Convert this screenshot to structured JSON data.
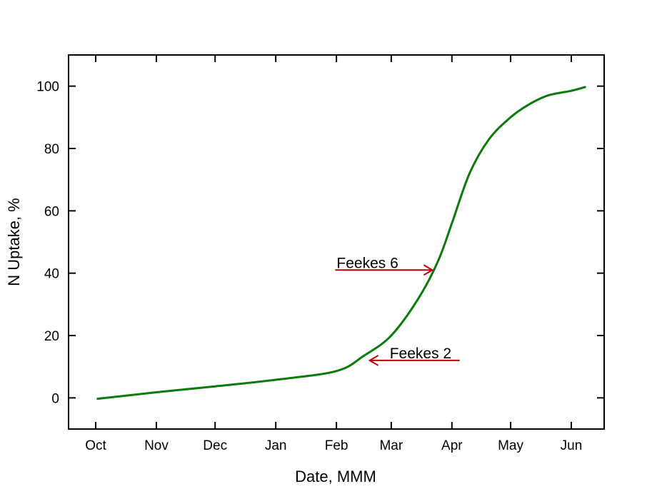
{
  "chart_data": {
    "type": "line",
    "xlabel": "Date, MMM",
    "ylabel": "N Uptake, %",
    "x_tick_labels": [
      "Oct",
      "Nov",
      "Dec",
      "Jan",
      "Feb",
      "Mar",
      "Apr",
      "May",
      "Jun"
    ],
    "x_tick_dates": [
      "Oct 1",
      "Nov 1",
      "Dec 1",
      "Jan 1",
      "Feb 1",
      "Mar 1",
      "Apr 1",
      "May 1",
      "Jun 1"
    ],
    "y_ticks": [
      0,
      20,
      40,
      60,
      80,
      100
    ],
    "ylim": [
      -10,
      110
    ],
    "grid": false,
    "legend": "none",
    "series": [
      {
        "color": "#0a7a0a",
        "x": [
          "Oct 2",
          "Nov 1",
          "Dec 1",
          "Jan 1",
          "Feb 1",
          "Feb 15",
          "Mar 1",
          "Mar 15",
          "Mar 25",
          "Apr 1",
          "Apr 10",
          "Apr 20",
          "May 1",
          "May 10",
          "May 20",
          "Jun 1",
          "Jun 8"
        ],
        "y": [
          -0.3,
          1.8,
          3.7,
          5.8,
          8.6,
          13.5,
          20,
          32,
          44,
          56,
          72,
          83,
          90,
          94,
          97,
          98.5,
          99.7
        ]
      }
    ],
    "annotations": [
      {
        "text": "Feekes 6",
        "arrow_to_date": "Mar 22",
        "value": 41,
        "color": "#c00000"
      },
      {
        "text": "Feekes 2",
        "arrow_to_date": "Feb 18",
        "value": 12,
        "color": "#c00000"
      }
    ]
  }
}
